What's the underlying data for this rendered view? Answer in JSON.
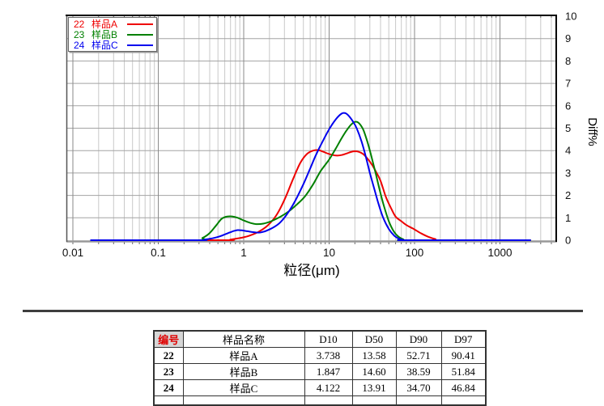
{
  "chart": {
    "ylabel": "Diff%",
    "xlabel": "粒径(μm)"
  },
  "chart_data": {
    "type": "line",
    "x_scale": "log",
    "xlabel": "粒径(μm)",
    "ylabel": "Diff%",
    "xlim": [
      0.008,
      4500
    ],
    "ylim": [
      0,
      10
    ],
    "x_ticks": [
      0.01,
      0.1,
      1,
      10,
      100,
      1000
    ],
    "y_ticks": [
      0,
      1,
      2,
      3,
      4,
      5,
      6,
      7,
      8,
      9,
      10
    ],
    "grid": true,
    "legend_position": "top-left",
    "series": [
      {
        "id": "22",
        "name": "样品A",
        "color": "#ee0000",
        "points": [
          [
            0.016,
            0
          ],
          [
            0.55,
            0
          ],
          [
            0.7,
            0.03
          ],
          [
            0.85,
            0.08
          ],
          [
            1.0,
            0.13
          ],
          [
            1.2,
            0.22
          ],
          [
            1.5,
            0.38
          ],
          [
            1.9,
            0.65
          ],
          [
            2.4,
            1.1
          ],
          [
            3.0,
            1.8
          ],
          [
            3.8,
            2.75
          ],
          [
            4.6,
            3.45
          ],
          [
            5.5,
            3.85
          ],
          [
            6.5,
            4.0
          ],
          [
            7.5,
            4.02
          ],
          [
            8.5,
            3.95
          ],
          [
            10,
            3.85
          ],
          [
            12,
            3.78
          ],
          [
            14,
            3.8
          ],
          [
            16,
            3.87
          ],
          [
            18,
            3.94
          ],
          [
            20,
            3.97
          ],
          [
            22,
            3.95
          ],
          [
            25,
            3.85
          ],
          [
            28,
            3.65
          ],
          [
            32,
            3.35
          ],
          [
            36,
            3.0
          ],
          [
            40,
            2.65
          ],
          [
            46,
            1.95
          ],
          [
            52,
            1.5
          ],
          [
            60,
            1.05
          ],
          [
            70,
            0.85
          ],
          [
            80,
            0.68
          ],
          [
            100,
            0.48
          ],
          [
            120,
            0.3
          ],
          [
            145,
            0.15
          ],
          [
            175,
            0.05
          ],
          [
            210,
            0
          ],
          [
            2300,
            0
          ]
        ]
      },
      {
        "id": "23",
        "name": "样品B",
        "color": "#008000",
        "points": [
          [
            0.016,
            0
          ],
          [
            0.27,
            0
          ],
          [
            0.33,
            0.1
          ],
          [
            0.4,
            0.32
          ],
          [
            0.48,
            0.68
          ],
          [
            0.55,
            0.95
          ],
          [
            0.63,
            1.05
          ],
          [
            0.73,
            1.06
          ],
          [
            0.85,
            1.0
          ],
          [
            1.0,
            0.88
          ],
          [
            1.2,
            0.77
          ],
          [
            1.4,
            0.72
          ],
          [
            1.7,
            0.74
          ],
          [
            2.1,
            0.85
          ],
          [
            2.7,
            1.05
          ],
          [
            3.4,
            1.3
          ],
          [
            4.2,
            1.6
          ],
          [
            5.2,
            1.95
          ],
          [
            6.5,
            2.5
          ],
          [
            8,
            3.1
          ],
          [
            10,
            3.6
          ],
          [
            12,
            4.1
          ],
          [
            14,
            4.55
          ],
          [
            16,
            4.9
          ],
          [
            18,
            5.15
          ],
          [
            20,
            5.28
          ],
          [
            22,
            5.25
          ],
          [
            25,
            4.95
          ],
          [
            28,
            4.4
          ],
          [
            31,
            3.8
          ],
          [
            35,
            3.0
          ],
          [
            39,
            2.25
          ],
          [
            44,
            1.5
          ],
          [
            50,
            0.85
          ],
          [
            57,
            0.4
          ],
          [
            65,
            0.15
          ],
          [
            74,
            0.04
          ],
          [
            84,
            0
          ],
          [
            2300,
            0
          ]
        ]
      },
      {
        "id": "24",
        "name": "样品C",
        "color": "#0000ee",
        "points": [
          [
            0.016,
            0
          ],
          [
            0.28,
            0
          ],
          [
            0.35,
            0.03
          ],
          [
            0.45,
            0.1
          ],
          [
            0.55,
            0.2
          ],
          [
            0.65,
            0.31
          ],
          [
            0.75,
            0.4
          ],
          [
            0.85,
            0.45
          ],
          [
            0.95,
            0.44
          ],
          [
            1.1,
            0.4
          ],
          [
            1.35,
            0.35
          ],
          [
            1.6,
            0.35
          ],
          [
            2,
            0.48
          ],
          [
            2.6,
            0.75
          ],
          [
            3.2,
            1.15
          ],
          [
            4,
            1.75
          ],
          [
            5,
            2.5
          ],
          [
            6,
            3.2
          ],
          [
            7,
            3.8
          ],
          [
            8.5,
            4.45
          ],
          [
            10,
            4.95
          ],
          [
            12,
            5.4
          ],
          [
            14,
            5.65
          ],
          [
            15.5,
            5.67
          ],
          [
            17,
            5.55
          ],
          [
            19,
            5.3
          ],
          [
            21,
            5.0
          ],
          [
            24,
            4.4
          ],
          [
            27,
            3.7
          ],
          [
            30,
            3.0
          ],
          [
            34,
            2.25
          ],
          [
            38,
            1.6
          ],
          [
            43,
            1.0
          ],
          [
            50,
            0.5
          ],
          [
            58,
            0.2
          ],
          [
            66,
            0.06
          ],
          [
            74,
            0.01
          ],
          [
            85,
            0
          ],
          [
            2300,
            0
          ]
        ]
      }
    ]
  },
  "table": {
    "columns": [
      "编号",
      "样品名称",
      "D10",
      "D50",
      "D90",
      "D97"
    ],
    "rows": [
      [
        "22",
        "样品A",
        "3.738",
        "13.58",
        "52.71",
        "90.41"
      ],
      [
        "23",
        "样品B",
        "1.847",
        "14.60",
        "38.59",
        "51.84"
      ],
      [
        "24",
        "样品C",
        "4.122",
        "13.91",
        "34.70",
        "46.84"
      ]
    ],
    "header_accent_color": "#e00000"
  }
}
